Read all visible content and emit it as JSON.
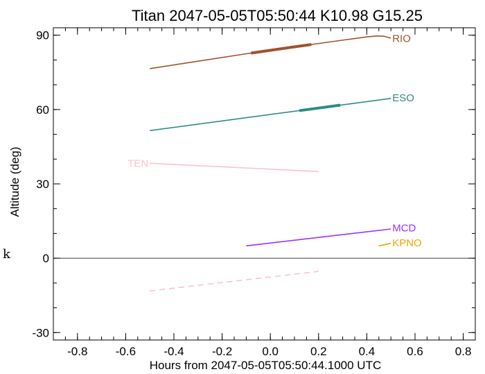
{
  "side_mark": "k",
  "chart_data": {
    "type": "line",
    "title": "Titan 2047-05-05T05:50:44  K10.98  G15.25",
    "xlabel": "Hours from 2047-05-05T05:50:44.1000 UTC",
    "ylabel": "Altitude (deg)",
    "xlim": [
      -0.9,
      0.85
    ],
    "ylim": [
      -33,
      93
    ],
    "xticks": [
      -0.8,
      -0.6,
      -0.4,
      -0.2,
      0.0,
      0.2,
      0.4,
      0.6,
      0.8
    ],
    "xtick_labels": [
      "-0.8",
      "-0.6",
      "-0.4",
      "-0.2",
      "0.0",
      "0.2",
      "0.4",
      "0.6",
      "0.8"
    ],
    "yticks": [
      -30,
      0,
      30,
      60,
      90
    ],
    "ytick_labels": [
      "-30",
      "0",
      "30",
      "60",
      "90"
    ],
    "zero_line": 0,
    "grid": false,
    "series": [
      {
        "name": "RIO",
        "color": "#a0522d",
        "x": [
          -0.5,
          -0.3,
          -0.1,
          0.1,
          0.3,
          0.4,
          0.44,
          0.47,
          0.5
        ],
        "y": [
          76.5,
          79.5,
          82.5,
          85.3,
          88.0,
          89.3,
          89.7,
          89.6,
          88.8
        ],
        "thick": [
          [
            -0.08,
            0.17
          ]
        ],
        "label_x": 0.5,
        "label_y": 89
      },
      {
        "name": "ESO",
        "color": "#2e8b84",
        "x": [
          -0.5,
          0.5
        ],
        "y": [
          51.5,
          64.5
        ],
        "thick": [
          [
            0.12,
            0.29
          ]
        ],
        "label_x": 0.5,
        "label_y": 65
      },
      {
        "name": "TEN",
        "color": "#ffc0cb",
        "x": [
          -0.5,
          0.2
        ],
        "y": [
          38.3,
          35.0
        ],
        "thick": [],
        "label_x": -0.5,
        "label_y": 38.5,
        "label_side": "left"
      },
      {
        "name": "",
        "color": "#ffc0cb",
        "dashed": true,
        "x": [
          -0.5,
          0.2
        ],
        "y": [
          -13.2,
          -5.3
        ],
        "thick": []
      },
      {
        "name": "MCD",
        "color": "#9b30ff",
        "x": [
          -0.1,
          0.5
        ],
        "y": [
          5.0,
          11.8
        ],
        "thick": [],
        "label_x": 0.5,
        "label_y": 12.5
      },
      {
        "name": "KPNO",
        "color": "#f0a500",
        "x": [
          0.45,
          0.5
        ],
        "y": [
          5.0,
          6.0
        ],
        "thick": [],
        "label_x": 0.5,
        "label_y": 6.5
      }
    ]
  }
}
